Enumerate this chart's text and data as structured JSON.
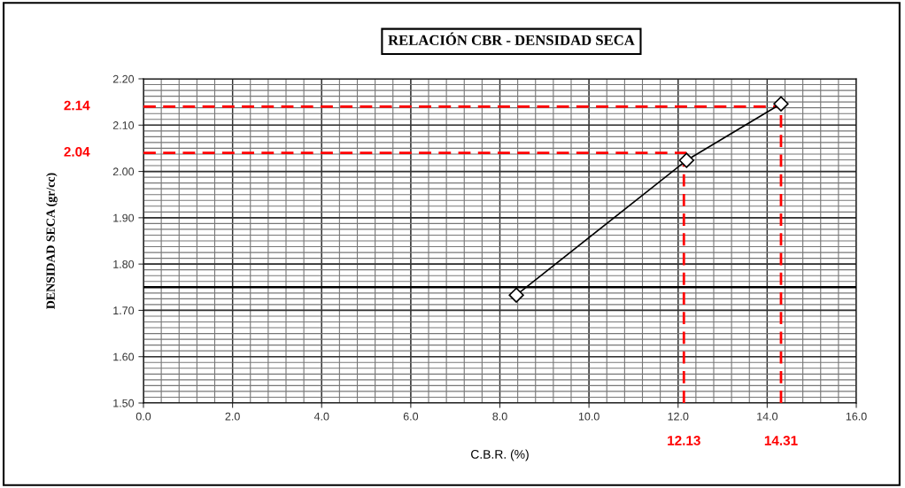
{
  "chart_data": {
    "type": "line",
    "title": "RELACIÓN CBR - DENSIDAD SECA",
    "xlabel": "C.B.R. (%)",
    "ylabel": "DENSIDAD SECA (gr/cc)",
    "x": [
      8.37,
      12.19,
      14.31
    ],
    "series": [
      {
        "color": "#000000",
        "values": [
          1.733,
          2.024,
          2.146
        ]
      }
    ],
    "marker": "diamond",
    "line_style": "solid",
    "xlim": [
      0,
      16
    ],
    "ylim": [
      1.5,
      2.2
    ],
    "xticks": [
      {
        "value": 0,
        "label": "0.0"
      },
      {
        "value": 2,
        "label": "2.0"
      },
      {
        "value": 4,
        "label": "4.0"
      },
      {
        "value": 6,
        "label": "6.0"
      },
      {
        "value": 8,
        "label": "8.0"
      },
      {
        "value": 10,
        "label": "10.0"
      },
      {
        "value": 12,
        "label": "12.0"
      },
      {
        "value": 14,
        "label": "14.0"
      },
      {
        "value": 16,
        "label": "16.0"
      }
    ],
    "yticks": [
      {
        "value": 1.5,
        "label": "1.50"
      },
      {
        "value": 1.6,
        "label": "1.60"
      },
      {
        "value": 1.7,
        "label": "1.70"
      },
      {
        "value": 1.8,
        "label": "1.80"
      },
      {
        "value": 1.9,
        "label": "1.90"
      },
      {
        "value": 2.0,
        "label": "2.00"
      },
      {
        "value": 2.1,
        "label": "2.10"
      },
      {
        "value": 2.2,
        "label": "2.20"
      }
    ],
    "grid": true,
    "ref_lines": [
      {
        "axis": "y",
        "value": 2.14,
        "label": "2.14",
        "color": "#ff0000",
        "line_style": "dashed"
      },
      {
        "axis": "y",
        "value": 2.04,
        "label": "2.04",
        "color": "#ff0000",
        "line_style": "dashed"
      },
      {
        "axis": "x",
        "value": 12.13,
        "label": "12.13",
        "color": "#ff0000",
        "line_style": "dashed"
      },
      {
        "axis": "x",
        "value": 14.31,
        "label": "14.31",
        "color": "#ff0000",
        "line_style": "dashed"
      },
      {
        "axis": "y",
        "value": 1.75,
        "color": "#000000",
        "line_style": "solid"
      }
    ]
  }
}
